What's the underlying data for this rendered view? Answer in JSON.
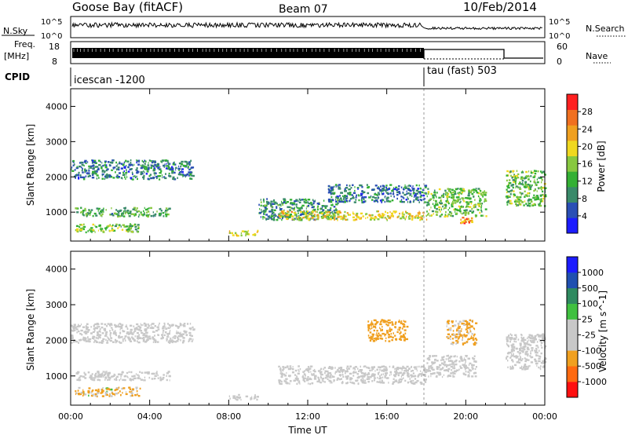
{
  "header": {
    "site": "Goose Bay (fitACF)",
    "beam": "Beam 07",
    "date": "10/Feb/2014"
  },
  "panels": {
    "nsky_label": "N.Sky",
    "nsky_ticks": [
      "10^5",
      "10^0"
    ],
    "nsearch_label": "N.Search",
    "freq_label": "Freq.",
    "freq_unit": "[MHz]",
    "freq_ticks": [
      "18",
      "8"
    ],
    "nave_ticks": [
      "60",
      "0"
    ],
    "nave_label": "Nave",
    "cpid_label": "CPID",
    "cpid_left": "icescan -1200",
    "cpid_right": "tau (fast) 503"
  },
  "colors": {
    "power": [
      "#1c1cff",
      "#2a4fb5",
      "#3a8a6a",
      "#34b034",
      "#88c840",
      "#f0d820",
      "#f0a020",
      "#f07020",
      "#ff2020"
    ],
    "velocity": [
      "#ff1010",
      "#ff6a10",
      "#f0a020",
      "#c8c8c8",
      "#c8c8c8",
      "#40c040",
      "#2f8a60",
      "#2050b0",
      "#1c1cff"
    ],
    "ground_scatter": "#c8c8c8"
  },
  "chart_data": [
    {
      "type": "heatmap",
      "ylabel": "Slant Range [km]",
      "ylim": [
        180,
        4500
      ],
      "yticks": [
        "1000",
        "2000",
        "3000",
        "4000"
      ],
      "colorbar_label": "Power [dB]",
      "colorbar_ticks": [
        "4",
        "8",
        "12",
        "16",
        "20",
        "24",
        "28"
      ],
      "colorbar_range": [
        0,
        32
      ],
      "echo_regions": [
        {
          "x": [
            0.0,
            6.2
          ],
          "y": [
            1950,
            2500
          ],
          "value": 8
        },
        {
          "x": [
            0.2,
            5.0
          ],
          "y": [
            900,
            1150
          ],
          "value": 12
        },
        {
          "x": [
            0.2,
            3.5
          ],
          "y": [
            450,
            700
          ],
          "value": 14
        },
        {
          "x": [
            8.0,
            9.5
          ],
          "y": [
            350,
            500
          ],
          "value": 18
        },
        {
          "x": [
            9.5,
            13.5
          ],
          "y": [
            800,
            1400
          ],
          "value": 10
        },
        {
          "x": [
            10.5,
            18.0
          ],
          "y": [
            800,
            1050
          ],
          "value": 20
        },
        {
          "x": [
            13.0,
            18.0
          ],
          "y": [
            1300,
            1800
          ],
          "value": 8
        },
        {
          "x": [
            18.0,
            21.0
          ],
          "y": [
            900,
            1700
          ],
          "value": 14
        },
        {
          "x": [
            19.7,
            20.3
          ],
          "y": [
            700,
            900
          ],
          "value": 24
        },
        {
          "x": [
            22.0,
            24.0
          ],
          "y": [
            1200,
            2200
          ],
          "value": 14
        }
      ]
    },
    {
      "type": "heatmap",
      "ylabel": "Slant Range [km]",
      "xlabel": "Time UT",
      "ylim": [
        180,
        4500
      ],
      "xlim": [
        0,
        24
      ],
      "xticks": [
        "00:00",
        "04:00",
        "08:00",
        "12:00",
        "16:00",
        "20:00",
        "00:00"
      ],
      "yticks": [
        "1000",
        "2000",
        "3000",
        "4000"
      ],
      "colorbar_label": "Velocity [m s^-1]",
      "colorbar_ticks": [
        "1000",
        "500",
        "100",
        "25",
        "-25",
        "-100",
        "-500",
        "-1000"
      ],
      "echo_regions": [
        {
          "x": [
            0.0,
            6.2
          ],
          "y": [
            1950,
            2500
          ],
          "value": 0
        },
        {
          "x": [
            0.2,
            5.0
          ],
          "y": [
            900,
            1150
          ],
          "value": 0
        },
        {
          "x": [
            0.2,
            3.5
          ],
          "y": [
            450,
            700
          ],
          "value": -150
        },
        {
          "x": [
            8.0,
            9.5
          ],
          "y": [
            350,
            500
          ],
          "value": 0
        },
        {
          "x": [
            10.5,
            18.0
          ],
          "y": [
            800,
            1300
          ],
          "value": 0
        },
        {
          "x": [
            15.0,
            17.0
          ],
          "y": [
            2000,
            2600
          ],
          "value": -300
        },
        {
          "x": [
            18.0,
            20.5
          ],
          "y": [
            1000,
            1600
          ],
          "value": 0
        },
        {
          "x": [
            19.0,
            20.5
          ],
          "y": [
            1900,
            2600
          ],
          "value": -200
        },
        {
          "x": [
            22.0,
            24.0
          ],
          "y": [
            1200,
            2200
          ],
          "value": 0
        }
      ]
    }
  ]
}
